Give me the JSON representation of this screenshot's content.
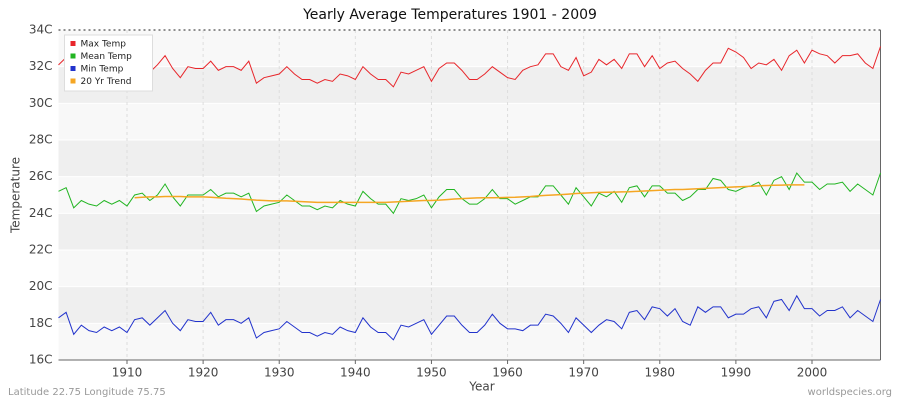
{
  "chart_data": {
    "type": "line",
    "title": "Yearly Average Temperatures 1901 - 2009",
    "x_label": "Year",
    "y_label": "Temperature",
    "footer_left": "Latitude 22.75 Longitude 75.75",
    "footer_right": "worldspecies.org",
    "legend": "top-left",
    "grid": true,
    "xlim": [
      1901,
      2009
    ],
    "xticks": [
      1910,
      1920,
      1930,
      1940,
      1950,
      1960,
      1970,
      1980,
      1990,
      2000
    ],
    "ylim": [
      16,
      34
    ],
    "yticks": [
      {
        "value": 16,
        "label": "16C"
      },
      {
        "value": 18,
        "label": "18C"
      },
      {
        "value": 20,
        "label": "20C"
      },
      {
        "value": 22,
        "label": "22C"
      },
      {
        "value": 24,
        "label": "24C"
      },
      {
        "value": 26,
        "label": "26C"
      },
      {
        "value": 28,
        "label": "28C"
      },
      {
        "value": 30,
        "label": "30C"
      },
      {
        "value": 32,
        "label": "32C"
      },
      {
        "value": 34,
        "label": "34C"
      }
    ],
    "x": [
      1901,
      1902,
      1903,
      1904,
      1905,
      1906,
      1907,
      1908,
      1909,
      1910,
      1911,
      1912,
      1913,
      1914,
      1915,
      1916,
      1917,
      1918,
      1919,
      1920,
      1921,
      1922,
      1923,
      1924,
      1925,
      1926,
      1927,
      1928,
      1929,
      1930,
      1931,
      1932,
      1933,
      1934,
      1935,
      1936,
      1937,
      1938,
      1939,
      1940,
      1941,
      1942,
      1943,
      1944,
      1945,
      1946,
      1947,
      1948,
      1949,
      1950,
      1951,
      1952,
      1953,
      1954,
      1955,
      1956,
      1957,
      1958,
      1959,
      1960,
      1961,
      1962,
      1963,
      1964,
      1965,
      1966,
      1967,
      1968,
      1969,
      1970,
      1971,
      1972,
      1973,
      1974,
      1975,
      1976,
      1977,
      1978,
      1979,
      1980,
      1981,
      1982,
      1983,
      1984,
      1985,
      1986,
      1987,
      1988,
      1989,
      1990,
      1991,
      1992,
      1993,
      1994,
      1995,
      1996,
      1997,
      1998,
      1999,
      2000,
      2001,
      2002,
      2003,
      2004,
      2005,
      2006,
      2007,
      2008,
      2009
    ],
    "series": [
      {
        "name": "Max Temp",
        "color": "#e8262b",
        "values": [
          32.1,
          32.5,
          31.7,
          32.3,
          32.0,
          31.9,
          32.2,
          31.8,
          32.1,
          31.9,
          32.4,
          32.3,
          31.7,
          32.1,
          32.6,
          31.9,
          31.4,
          32.0,
          31.9,
          31.9,
          32.3,
          31.8,
          32.0,
          32.0,
          31.8,
          32.3,
          31.1,
          31.4,
          31.5,
          31.6,
          32.0,
          31.6,
          31.3,
          31.3,
          31.1,
          31.3,
          31.2,
          31.6,
          31.5,
          31.3,
          32.0,
          31.6,
          31.3,
          31.3,
          30.9,
          31.7,
          31.6,
          31.8,
          32.0,
          31.2,
          31.9,
          32.2,
          32.2,
          31.8,
          31.3,
          31.3,
          31.6,
          32.0,
          31.7,
          31.4,
          31.3,
          31.8,
          32.0,
          32.1,
          32.7,
          32.7,
          32.0,
          31.8,
          32.5,
          31.5,
          31.7,
          32.4,
          32.1,
          32.4,
          31.9,
          32.7,
          32.7,
          32.0,
          32.6,
          31.9,
          32.2,
          32.3,
          31.9,
          31.6,
          31.2,
          31.8,
          32.2,
          32.2,
          33.0,
          32.8,
          32.5,
          31.9,
          32.2,
          32.1,
          32.4,
          31.8,
          32.6,
          32.9,
          32.2,
          32.9,
          32.7,
          32.6,
          32.2,
          32.6,
          32.6,
          32.7,
          32.2,
          31.9,
          33.1
        ]
      },
      {
        "name": "Mean Temp",
        "color": "#22b522",
        "values": [
          25.2,
          25.4,
          24.3,
          24.7,
          24.5,
          24.4,
          24.7,
          24.5,
          24.7,
          24.4,
          25.0,
          25.1,
          24.7,
          25.0,
          25.6,
          24.9,
          24.4,
          25.0,
          25.0,
          25.0,
          25.3,
          24.9,
          25.1,
          25.1,
          24.9,
          25.1,
          24.1,
          24.4,
          24.5,
          24.6,
          25.0,
          24.7,
          24.4,
          24.4,
          24.2,
          24.4,
          24.3,
          24.7,
          24.5,
          24.4,
          25.2,
          24.8,
          24.5,
          24.5,
          24.0,
          24.8,
          24.7,
          24.8,
          25.0,
          24.3,
          24.9,
          25.3,
          25.3,
          24.8,
          24.5,
          24.5,
          24.8,
          25.3,
          24.8,
          24.8,
          24.5,
          24.7,
          24.9,
          24.9,
          25.5,
          25.5,
          25.0,
          24.5,
          25.4,
          24.9,
          24.4,
          25.1,
          24.9,
          25.2,
          24.6,
          25.4,
          25.5,
          24.9,
          25.5,
          25.5,
          25.1,
          25.1,
          24.7,
          24.9,
          25.3,
          25.3,
          25.9,
          25.8,
          25.3,
          25.2,
          25.4,
          25.5,
          25.7,
          25.0,
          25.8,
          26.0,
          25.3,
          26.2,
          25.7,
          25.7,
          25.3,
          25.6,
          25.6,
          25.7,
          25.2,
          25.6,
          25.3,
          25.0,
          26.2
        ]
      },
      {
        "name": "Min Temp",
        "color": "#2233cc",
        "values": [
          18.3,
          18.6,
          17.4,
          17.9,
          17.6,
          17.5,
          17.8,
          17.6,
          17.8,
          17.5,
          18.2,
          18.3,
          17.9,
          18.3,
          18.7,
          18.0,
          17.6,
          18.2,
          18.1,
          18.1,
          18.6,
          17.9,
          18.2,
          18.2,
          18.0,
          18.3,
          17.2,
          17.5,
          17.6,
          17.7,
          18.1,
          17.8,
          17.5,
          17.5,
          17.3,
          17.5,
          17.4,
          17.8,
          17.6,
          17.5,
          18.3,
          17.8,
          17.5,
          17.5,
          17.1,
          17.9,
          17.8,
          18.0,
          18.2,
          17.4,
          17.9,
          18.4,
          18.4,
          17.9,
          17.5,
          17.5,
          17.9,
          18.5,
          18.0,
          17.7,
          17.7,
          17.6,
          17.9,
          17.9,
          18.5,
          18.4,
          18.0,
          17.5,
          18.3,
          17.9,
          17.5,
          17.9,
          18.2,
          18.1,
          17.7,
          18.6,
          18.7,
          18.2,
          18.9,
          18.8,
          18.4,
          18.8,
          18.1,
          17.9,
          18.9,
          18.6,
          18.9,
          18.9,
          18.3,
          18.5,
          18.5,
          18.8,
          18.9,
          18.3,
          19.2,
          19.3,
          18.7,
          19.5,
          18.8,
          18.8,
          18.4,
          18.7,
          18.7,
          18.9,
          18.3,
          18.7,
          18.4,
          18.1,
          19.3
        ]
      },
      {
        "name": "20 Yr Trend",
        "color": "#f5a623",
        "values": [
          null,
          null,
          null,
          null,
          null,
          null,
          null,
          null,
          null,
          null,
          24.85,
          24.88,
          24.9,
          24.9,
          24.92,
          24.92,
          24.92,
          24.9,
          24.9,
          24.9,
          24.88,
          24.85,
          24.82,
          24.8,
          24.78,
          24.75,
          24.72,
          24.7,
          24.68,
          24.68,
          24.68,
          24.66,
          24.64,
          24.62,
          24.6,
          24.6,
          24.6,
          24.6,
          24.6,
          24.6,
          24.6,
          24.6,
          24.6,
          24.6,
          24.62,
          24.64,
          24.66,
          24.68,
          24.7,
          24.7,
          24.72,
          24.75,
          24.78,
          24.8,
          24.82,
          24.84,
          24.85,
          24.85,
          24.86,
          24.87,
          24.88,
          24.9,
          24.92,
          24.95,
          24.98,
          25.0,
          25.02,
          25.05,
          25.08,
          25.1,
          25.12,
          25.14,
          25.15,
          25.16,
          25.17,
          25.18,
          25.2,
          25.22,
          25.24,
          25.26,
          25.28,
          25.3,
          25.3,
          25.32,
          25.34,
          25.36,
          25.38,
          25.4,
          25.42,
          25.44,
          25.46,
          25.48,
          25.5,
          25.52,
          25.53,
          25.54,
          25.55,
          25.55,
          25.55,
          null,
          null,
          null,
          null,
          null,
          null,
          null,
          null,
          null,
          null
        ]
      }
    ]
  }
}
